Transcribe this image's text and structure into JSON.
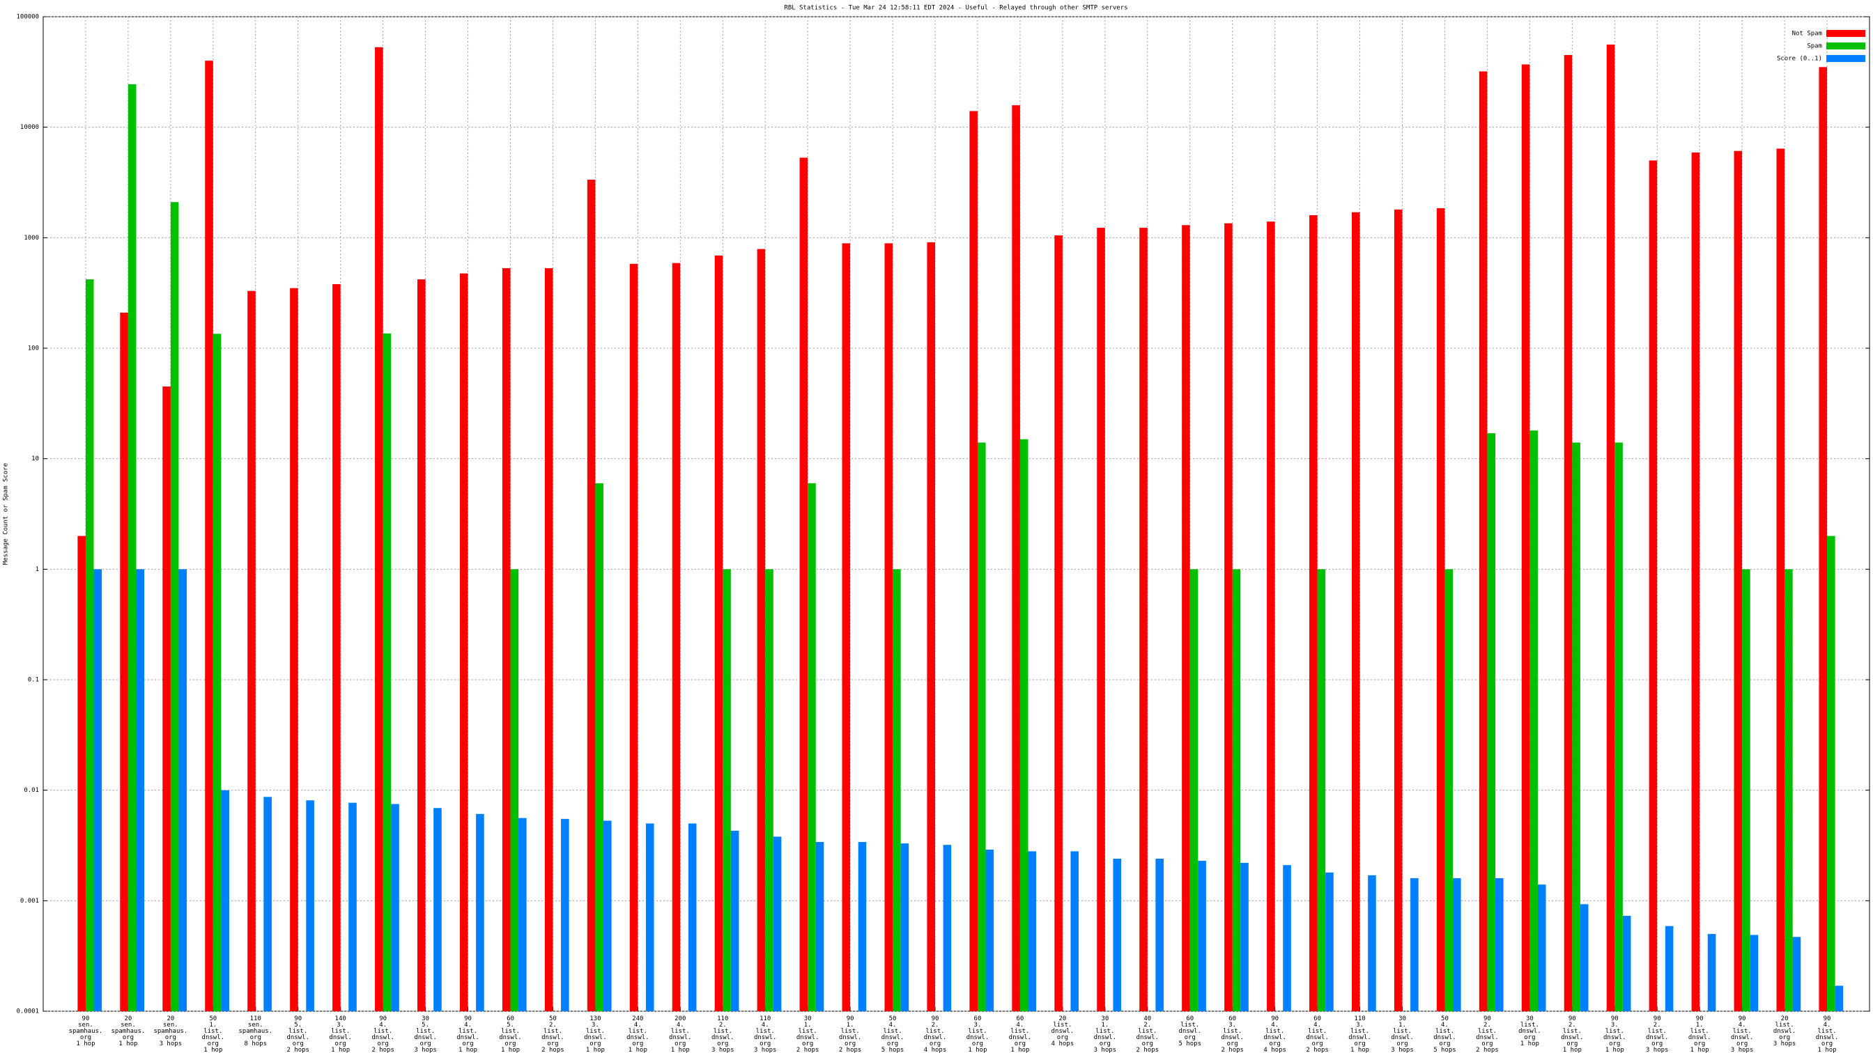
{
  "chart_data": {
    "type": "bar",
    "title": "RBL Statistics - Tue Mar 24 12:58:11 EDT 2024 - Useful - Relayed through other SMTP servers",
    "y_label": "Message Count or Spam Score",
    "log_scale": true,
    "grid": true,
    "legend_position": "top-right",
    "ylim": [
      0.0001,
      100000
    ],
    "yticks": [
      0.0001,
      0.001,
      0.01,
      0.1,
      1,
      10,
      100,
      1000,
      10000,
      100000
    ],
    "categories": [
      [
        "90",
        "sen.",
        "spamhaus.",
        "org",
        "1 hop"
      ],
      [
        "20",
        "sen.",
        "spamhaus.",
        "org",
        "1 hop"
      ],
      [
        "20",
        "sen.",
        "spamhaus.",
        "org",
        "3 hops"
      ],
      [
        "50",
        "1.",
        "list.",
        "dnswl.",
        "org",
        "1 hop"
      ],
      [
        "110",
        "sen.",
        "spamhaus.",
        "org",
        "8 hops"
      ],
      [
        "90",
        "5.",
        "list.",
        "dnswl.",
        "org",
        "2 hops"
      ],
      [
        "140",
        "3.",
        "list.",
        "dnswl.",
        "org",
        "1 hop"
      ],
      [
        "90",
        "4.",
        "list.",
        "dnswl.",
        "org",
        "2 hops"
      ],
      [
        "30",
        "5.",
        "list.",
        "dnswl.",
        "org",
        "3 hops"
      ],
      [
        "90",
        "4.",
        "list.",
        "dnswl.",
        "org",
        "1 hop"
      ],
      [
        "60",
        "5.",
        "list.",
        "dnswl.",
        "org",
        "1 hop"
      ],
      [
        "50",
        "2.",
        "list.",
        "dnswl.",
        "org",
        "2 hops"
      ],
      [
        "130",
        "3.",
        "list.",
        "dnswl.",
        "org",
        "1 hop"
      ],
      [
        "240",
        "4.",
        "list.",
        "dnswl.",
        "org",
        "1 hop"
      ],
      [
        "200",
        "4.",
        "list.",
        "dnswl.",
        "org",
        "1 hop"
      ],
      [
        "110",
        "2.",
        "list.",
        "dnswl.",
        "org",
        "3 hops"
      ],
      [
        "110",
        "4.",
        "list.",
        "dnswl.",
        "org",
        "3 hops"
      ],
      [
        "30",
        "1.",
        "list.",
        "dnswl.",
        "org",
        "2 hops"
      ],
      [
        "90",
        "1.",
        "list.",
        "dnswl.",
        "org",
        "2 hops"
      ],
      [
        "50",
        "4.",
        "list.",
        "dnswl.",
        "org",
        "5 hops"
      ],
      [
        "90",
        "2.",
        "list.",
        "dnswl.",
        "org",
        "4 hops"
      ],
      [
        "60",
        "3.",
        "list.",
        "dnswl.",
        "org",
        "1 hop"
      ],
      [
        "60",
        "4.",
        "list.",
        "dnswl.",
        "org",
        "1 hop"
      ],
      [
        "20",
        "list.",
        "dnswl.",
        "org",
        "4 hops"
      ],
      [
        "30",
        "1.",
        "list.",
        "dnswl.",
        "org",
        "3 hops"
      ],
      [
        "40",
        "2.",
        "list.",
        "dnswl.",
        "org",
        "2 hops"
      ],
      [
        "60",
        "list.",
        "dnswl.",
        "org",
        "5 hops"
      ],
      [
        "60",
        "3.",
        "list.",
        "dnswl.",
        "org",
        "2 hops"
      ],
      [
        "90",
        "4.",
        "list.",
        "dnswl.",
        "org",
        "4 hops"
      ],
      [
        "60",
        "4.",
        "list.",
        "dnswl.",
        "org",
        "2 hops"
      ],
      [
        "110",
        "3.",
        "list.",
        "dnswl.",
        "org",
        "1 hop"
      ],
      [
        "30",
        "1.",
        "list.",
        "dnswl.",
        "org",
        "3 hops"
      ],
      [
        "50",
        "4.",
        "list.",
        "dnswl.",
        "org",
        "5 hops"
      ],
      [
        "90",
        "2.",
        "list.",
        "dnswl.",
        "org",
        "2 hops"
      ],
      [
        "30",
        "list.",
        "dnswl.",
        "org",
        "1 hop"
      ],
      [
        "90",
        "2.",
        "list.",
        "dnswl.",
        "org",
        "1 hop"
      ],
      [
        "90",
        "3.",
        "list.",
        "dnswl.",
        "org",
        "1 hop"
      ],
      [
        "90",
        "2.",
        "list.",
        "dnswl.",
        "org",
        "3 hops"
      ],
      [
        "90",
        "1.",
        "list.",
        "dnswl.",
        "org",
        "1 hop"
      ],
      [
        "90",
        "4.",
        "list.",
        "dnswl.",
        "org",
        "3 hops"
      ],
      [
        "20",
        "list.",
        "dnswl.",
        "org",
        "3 hops"
      ],
      [
        "90",
        "4.",
        "list.",
        "dnswl.",
        "org",
        "1 hop"
      ]
    ],
    "series": [
      {
        "name": "Not Spam",
        "color": "#ff0000",
        "values": [
          2,
          210,
          45,
          40000,
          330,
          350,
          380,
          53000,
          420,
          475,
          530,
          530,
          3350,
          580,
          590,
          690,
          790,
          5300,
          890,
          890,
          910,
          14000,
          15800,
          1050,
          1230,
          1230,
          1300,
          1350,
          1400,
          1600,
          1700,
          1800,
          1850,
          32000,
          37000,
          45000,
          56000,
          5000,
          5900,
          6100,
          6400,
          35000
        ]
      },
      {
        "name": "Spam",
        "color": "#00c000",
        "values": [
          420,
          24500,
          2100,
          135,
          null,
          null,
          null,
          136,
          null,
          null,
          1,
          null,
          6,
          null,
          null,
          1,
          1,
          6,
          null,
          1,
          null,
          14,
          15,
          null,
          null,
          null,
          1,
          1,
          null,
          1,
          null,
          null,
          1,
          17,
          18,
          14,
          14,
          null,
          null,
          1,
          1,
          2
        ]
      },
      {
        "name": "Score (0..1)",
        "color": "#0080ff",
        "values": [
          1,
          1,
          1,
          0.01,
          0.0087,
          0.0081,
          0.0077,
          0.0075,
          0.0069,
          0.0061,
          0.0056,
          0.0055,
          0.0053,
          0.005,
          0.005,
          0.0043,
          0.0038,
          0.0034,
          0.0034,
          0.0033,
          0.0032,
          0.0029,
          0.0028,
          0.0028,
          0.0024,
          0.0024,
          0.0023,
          0.0022,
          0.0021,
          0.0018,
          0.0017,
          0.0016,
          0.0016,
          0.0016,
          0.0014,
          0.00093,
          0.00073,
          0.00059,
          0.0005,
          0.00049,
          0.00047,
          0.00017
        ]
      }
    ]
  }
}
